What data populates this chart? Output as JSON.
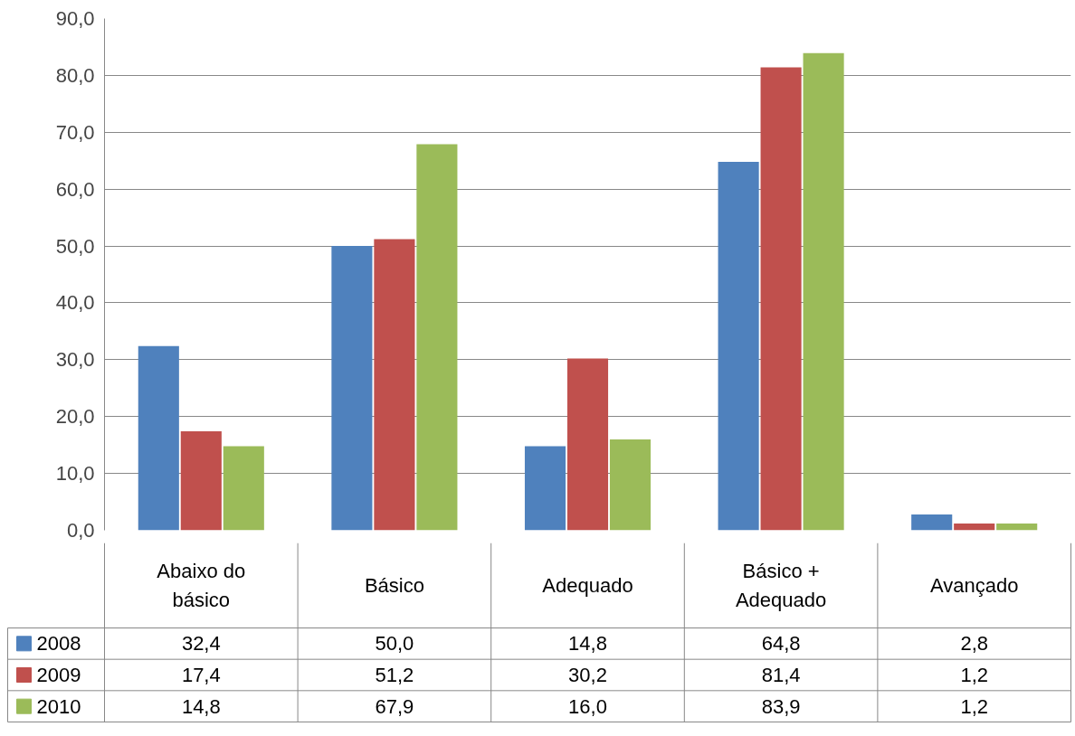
{
  "chart_data": {
    "type": "bar",
    "categories": [
      "Abaixo do\nbásico",
      "Básico",
      "Adequado",
      "Básico +\nAdequado",
      "Avançado"
    ],
    "series": [
      {
        "name": "2008",
        "color": "#4f81bd",
        "values": [
          32.4,
          50.0,
          14.8,
          64.8,
          2.8
        ],
        "value_labels": [
          "32,4",
          "50,0",
          "14,8",
          "64,8",
          "2,8"
        ]
      },
      {
        "name": "2009",
        "color": "#c0504d",
        "values": [
          17.4,
          51.2,
          30.2,
          81.4,
          1.2
        ],
        "value_labels": [
          "17,4",
          "51,2",
          "30,2",
          "81,4",
          "1,2"
        ]
      },
      {
        "name": "2010",
        "color": "#9bbb59",
        "values": [
          14.8,
          67.9,
          16.0,
          83.9,
          1.2
        ],
        "value_labels": [
          "14,8",
          "67,9",
          "16,0",
          "83,9",
          "1,2"
        ]
      }
    ],
    "ylim": [
      0,
      90
    ],
    "yticks": [
      {
        "value": 0,
        "label": "0,0"
      },
      {
        "value": 10,
        "label": "10,0"
      },
      {
        "value": 20,
        "label": "20,0"
      },
      {
        "value": 30,
        "label": "30,0"
      },
      {
        "value": 40,
        "label": "40,0"
      },
      {
        "value": 50,
        "label": "50,0"
      },
      {
        "value": 60,
        "label": "60,0"
      },
      {
        "value": 70,
        "label": "70,0"
      },
      {
        "value": 80,
        "label": "80,0"
      },
      {
        "value": 90,
        "label": "90,0"
      }
    ],
    "grid": "y",
    "legend": "bottom left"
  }
}
